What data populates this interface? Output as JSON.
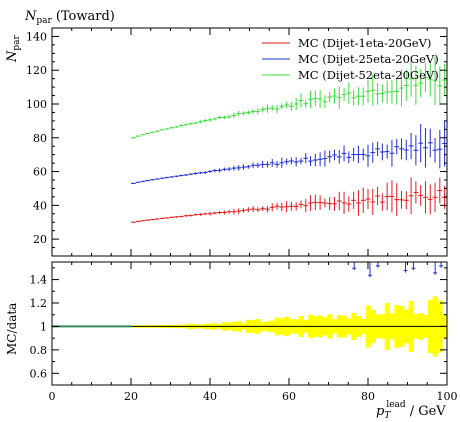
{
  "chart_data": [
    {
      "type": "scatter",
      "title": "N_par (Toward)",
      "title_main": "N",
      "title_sub": "par",
      "title_suffix": "(Toward)",
      "ylabel_main": "N",
      "ylabel_sub": "par",
      "xlim": [
        0,
        100
      ],
      "ylim": [
        10,
        145
      ],
      "yticks": [
        20,
        40,
        60,
        80,
        100,
        120,
        140
      ],
      "ytick_labels": [
        "20",
        "40",
        "60",
        "80",
        "100",
        "120",
        "140"
      ],
      "legend_position": "top-right",
      "series": [
        {
          "name": "MC (Dijet-1eta-20GeV)",
          "color": "#e31a1c",
          "start": 20,
          "end": 100,
          "n": 66,
          "y_start": 30,
          "y_end": 47,
          "err_start": 0.4,
          "err_end": 11,
          "noise": 3.5
        },
        {
          "name": "MC (Dijet-25eta-20GeV)",
          "color": "#1f2fd4",
          "start": 20,
          "end": 100,
          "n": 66,
          "y_start": 53,
          "y_end": 76,
          "err_start": 0.4,
          "err_end": 10,
          "noise": 3.5
        },
        {
          "name": "MC (Dijet-52eta-20GeV)",
          "color": "#3ddc3d",
          "start": 20,
          "end": 100,
          "n": 66,
          "y_start": 80,
          "y_end": 115,
          "err_start": 0.4,
          "err_end": 12,
          "noise": 5
        }
      ]
    },
    {
      "type": "area",
      "ylabel": "MC/data",
      "xlabel_main": "p",
      "xlabel_sub": "T",
      "xlabel_sup": "lead",
      "xlabel_suffix": "/ GeV",
      "xlim": [
        0,
        100
      ],
      "ylim": [
        0.5,
        1.55
      ],
      "xticks": [
        0,
        20,
        40,
        60,
        80,
        100
      ],
      "xtick_labels": [
        "0",
        "20",
        "40",
        "60",
        "80",
        "100"
      ],
      "yticks": [
        0.6,
        0.8,
        1.0,
        1.2,
        1.4
      ],
      "ytick_labels": [
        "0.6",
        "0.8",
        "1",
        "1.2",
        "1.4"
      ],
      "reference_value": 1.0,
      "band": {
        "color": "#ffff00",
        "start": 20,
        "end": 100,
        "halfwidth_start": 0.01,
        "halfwidth_end": 0.2
      },
      "outliers": [
        {
          "x": 76.5,
          "y_low": 1.48,
          "color": "#1f2fd4"
        },
        {
          "x": 80.5,
          "y_low": 1.42,
          "color": "#1f2fd4"
        },
        {
          "x": 82.5,
          "y_low": 1.5,
          "color": "#1f2fd4"
        },
        {
          "x": 89.5,
          "y_low": 1.46,
          "color": "#1f2fd4"
        },
        {
          "x": 91.5,
          "y_low": 1.48,
          "color": "#1f2fd4"
        },
        {
          "x": 97,
          "y_low": 1.44,
          "color": "#1f2fd4"
        },
        {
          "x": 98.5,
          "y_low": 1.5,
          "color": "#1f2fd4"
        }
      ]
    }
  ]
}
